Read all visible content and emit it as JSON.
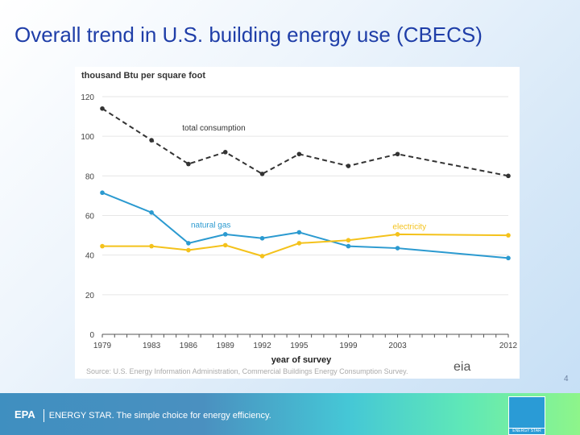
{
  "slide": {
    "title": "Overall trend in U.S. building energy use (CBECS)",
    "page_number": "4"
  },
  "footer": {
    "epa": "EPA",
    "tagline": "ENERGY STAR. The simple choice for energy efficiency.",
    "logo_text": "ENERGY STAR"
  },
  "chart_data": {
    "type": "line",
    "ylabel": "thousand Btu per square foot",
    "xlabel": "year of survey",
    "source": "Source: U.S. Energy Information Administration, Commercial Buildings Energy Consumption Survey.",
    "logo": "eia",
    "x": [
      1979,
      1983,
      1986,
      1989,
      1992,
      1995,
      1999,
      2003,
      2012
    ],
    "xticks": [
      "1979",
      "1983",
      "1986",
      "1989",
      "1992",
      "1995",
      "1999",
      "2003",
      "2012"
    ],
    "xlim": [
      1979,
      2012
    ],
    "ylim": [
      0,
      120
    ],
    "yticks": [
      "0",
      "20",
      "40",
      "60",
      "80",
      "100",
      "120"
    ],
    "grid": true,
    "series": [
      {
        "name": "total consumption",
        "color": "#333333",
        "dashed": true,
        "values": [
          114,
          98,
          86,
          92,
          81,
          91,
          85,
          91,
          80
        ]
      },
      {
        "name": "natural gas",
        "color": "#2b9ad0",
        "dashed": false,
        "values": [
          71.5,
          61.5,
          46,
          50.5,
          48.5,
          51.5,
          44.5,
          43.5,
          38.5
        ]
      },
      {
        "name": "electricity",
        "color": "#f4c21b",
        "dashed": false,
        "values": [
          44.5,
          44.5,
          42.5,
          45,
          39.5,
          46,
          47.5,
          50.5,
          50
        ]
      }
    ]
  }
}
